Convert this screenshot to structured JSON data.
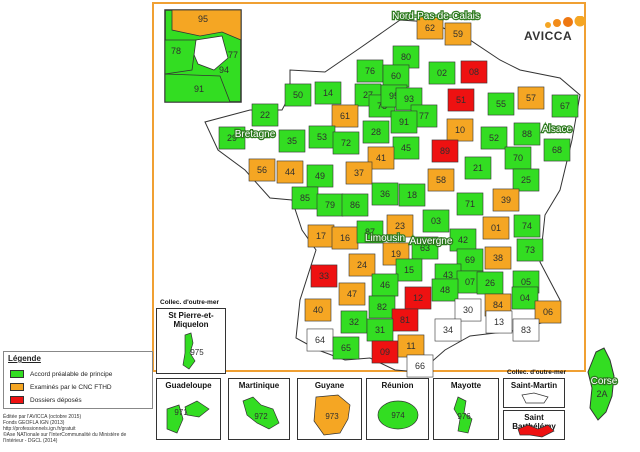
{
  "colors": {
    "accord": "#33dd22",
    "examine": "#f5a623",
    "depose": "#ee1111",
    "none": "#ffffff",
    "border": "#333333"
  },
  "logo": {
    "text": "AVICCA"
  },
  "map": {
    "region_labels": [
      "Nord-Pas-de-Calais",
      "Alsace",
      "Bretagne",
      "Limousin",
      "Auvergne"
    ],
    "paris_inset": [
      "95",
      "78",
      "77",
      "94",
      "91"
    ],
    "departments": [
      {
        "code": "62",
        "status": "examine"
      },
      {
        "code": "59",
        "status": "examine"
      },
      {
        "code": "80",
        "status": "accord"
      },
      {
        "code": "02",
        "status": "accord"
      },
      {
        "code": "08",
        "status": "depose"
      },
      {
        "code": "76",
        "status": "accord"
      },
      {
        "code": "60",
        "status": "accord"
      },
      {
        "code": "27",
        "status": "accord"
      },
      {
        "code": "14",
        "status": "accord"
      },
      {
        "code": "50",
        "status": "accord"
      },
      {
        "code": "51",
        "status": "depose"
      },
      {
        "code": "55",
        "status": "accord"
      },
      {
        "code": "57",
        "status": "examine"
      },
      {
        "code": "67",
        "status": "accord"
      },
      {
        "code": "61",
        "status": "examine"
      },
      {
        "code": "78",
        "status": "accord"
      },
      {
        "code": "95",
        "status": "accord"
      },
      {
        "code": "93",
        "status": "accord"
      },
      {
        "code": "77",
        "status": "accord"
      },
      {
        "code": "91",
        "status": "accord"
      },
      {
        "code": "28",
        "status": "accord"
      },
      {
        "code": "10",
        "status": "examine"
      },
      {
        "code": "52",
        "status": "accord"
      },
      {
        "code": "88",
        "status": "accord"
      },
      {
        "code": "22",
        "status": "accord"
      },
      {
        "code": "29",
        "status": "accord"
      },
      {
        "code": "53",
        "status": "accord"
      },
      {
        "code": "72",
        "status": "accord"
      },
      {
        "code": "45",
        "status": "accord"
      },
      {
        "code": "89",
        "status": "depose"
      },
      {
        "code": "70",
        "status": "accord"
      },
      {
        "code": "68",
        "status": "accord"
      },
      {
        "code": "35",
        "status": "accord"
      },
      {
        "code": "56",
        "status": "examine"
      },
      {
        "code": "44",
        "status": "examine"
      },
      {
        "code": "41",
        "status": "examine"
      },
      {
        "code": "37",
        "status": "examine"
      },
      {
        "code": "58",
        "status": "examine"
      },
      {
        "code": "21",
        "status": "accord"
      },
      {
        "code": "25",
        "status": "accord"
      },
      {
        "code": "49",
        "status": "accord"
      },
      {
        "code": "85",
        "status": "accord"
      },
      {
        "code": "79",
        "status": "accord"
      },
      {
        "code": "86",
        "status": "accord"
      },
      {
        "code": "36",
        "status": "accord"
      },
      {
        "code": "18",
        "status": "accord"
      },
      {
        "code": "71",
        "status": "accord"
      },
      {
        "code": "39",
        "status": "examine"
      },
      {
        "code": "17",
        "status": "examine"
      },
      {
        "code": "16",
        "status": "examine"
      },
      {
        "code": "87",
        "status": "accord"
      },
      {
        "code": "23",
        "status": "examine"
      },
      {
        "code": "03",
        "status": "accord"
      },
      {
        "code": "01",
        "status": "examine"
      },
      {
        "code": "74",
        "status": "accord"
      },
      {
        "code": "73",
        "status": "accord"
      },
      {
        "code": "63",
        "status": "accord"
      },
      {
        "code": "42",
        "status": "accord"
      },
      {
        "code": "69",
        "status": "accord"
      },
      {
        "code": "38",
        "status": "examine"
      },
      {
        "code": "33",
        "status": "depose"
      },
      {
        "code": "24",
        "status": "examine"
      },
      {
        "code": "19",
        "status": "examine"
      },
      {
        "code": "15",
        "status": "accord"
      },
      {
        "code": "43",
        "status": "accord"
      },
      {
        "code": "07",
        "status": "accord"
      },
      {
        "code": "26",
        "status": "accord"
      },
      {
        "code": "05",
        "status": "accord"
      },
      {
        "code": "47",
        "status": "examine"
      },
      {
        "code": "46",
        "status": "accord"
      },
      {
        "code": "12",
        "status": "depose"
      },
      {
        "code": "48",
        "status": "accord"
      },
      {
        "code": "84",
        "status": "examine"
      },
      {
        "code": "04",
        "status": "accord"
      },
      {
        "code": "06",
        "status": "examine"
      },
      {
        "code": "40",
        "status": "examine"
      },
      {
        "code": "82",
        "status": "accord"
      },
      {
        "code": "81",
        "status": "depose"
      },
      {
        "code": "30",
        "status": "none"
      },
      {
        "code": "13",
        "status": "none"
      },
      {
        "code": "83",
        "status": "none"
      },
      {
        "code": "32",
        "status": "accord"
      },
      {
        "code": "31",
        "status": "accord"
      },
      {
        "code": "34",
        "status": "none"
      },
      {
        "code": "64",
        "status": "none"
      },
      {
        "code": "65",
        "status": "accord"
      },
      {
        "code": "09",
        "status": "depose"
      },
      {
        "code": "11",
        "status": "examine"
      },
      {
        "code": "66",
        "status": "none"
      },
      {
        "code": "2A",
        "status": "accord"
      }
    ]
  },
  "insets": {
    "collec_left_label": "Collec. d'outre-mer",
    "collec_right_label": "Collec. d'outre-mer",
    "spm": {
      "name": "St Pierre-et-Miquelon",
      "code": "975"
    },
    "guadeloupe": {
      "name": "Guadeloupe",
      "code": "971"
    },
    "martinique": {
      "name": "Martinique",
      "code": "972"
    },
    "guyane": {
      "name": "Guyane",
      "code": "973"
    },
    "reunion": {
      "name": "Réunion",
      "code": "974"
    },
    "mayotte": {
      "name": "Mayotte",
      "code": "976"
    },
    "saint_martin": {
      "name": "Saint-Martin"
    },
    "saint_barthelemy": {
      "name": "Saint Barthélémy"
    },
    "corse_label": "Corse",
    "corse_code": "2A"
  },
  "legend": {
    "title": "Légende",
    "items": [
      {
        "label": "Accord préalable de principe",
        "status": "accord"
      },
      {
        "label": "Examinés par le CNC FTHD",
        "status": "examine"
      },
      {
        "label": "Dossiers déposés",
        "status": "depose"
      }
    ]
  },
  "credits": [
    "Éditée par l'AVICCA (octobre 2015)",
    "Fonds GEOFLA IGN (2013)",
    "http://professionnels.ign.fr/gratuit",
    "©Ase NATionale sur l'InterCommunalité du Ministère de",
    "l'Intérieur - DGCL (2014)"
  ]
}
